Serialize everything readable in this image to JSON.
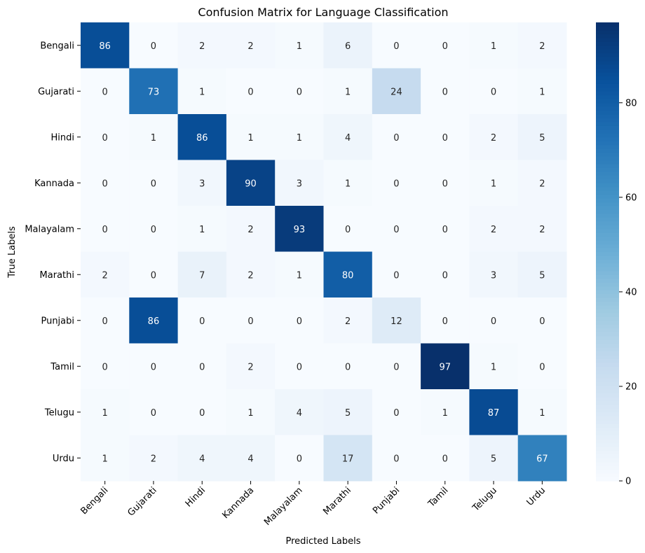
{
  "chart_data": {
    "type": "heatmap",
    "title": "Confusion Matrix for Language Classification",
    "xlabel": "Predicted Labels",
    "ylabel": "True Labels",
    "x_categories": [
      "Bengali",
      "Gujarati",
      "Hindi",
      "Kannada",
      "Malayalam",
      "Marathi",
      "Punjabi",
      "Tamil",
      "Telugu",
      "Urdu"
    ],
    "y_categories": [
      "Bengali",
      "Gujarati",
      "Hindi",
      "Kannada",
      "Malayalam",
      "Marathi",
      "Punjabi",
      "Tamil",
      "Telugu",
      "Urdu"
    ],
    "values": [
      [
        86,
        0,
        2,
        2,
        1,
        6,
        0,
        0,
        1,
        2
      ],
      [
        0,
        73,
        1,
        0,
        0,
        1,
        24,
        0,
        0,
        1
      ],
      [
        0,
        1,
        86,
        1,
        1,
        4,
        0,
        0,
        2,
        5
      ],
      [
        0,
        0,
        3,
        90,
        3,
        1,
        0,
        0,
        1,
        2
      ],
      [
        0,
        0,
        1,
        2,
        93,
        0,
        0,
        0,
        2,
        2
      ],
      [
        2,
        0,
        7,
        2,
        1,
        80,
        0,
        0,
        3,
        5
      ],
      [
        0,
        86,
        0,
        0,
        0,
        2,
        12,
        0,
        0,
        0
      ],
      [
        0,
        0,
        0,
        2,
        0,
        0,
        0,
        97,
        1,
        0
      ],
      [
        1,
        0,
        0,
        1,
        4,
        5,
        0,
        1,
        87,
        1
      ],
      [
        1,
        2,
        4,
        4,
        0,
        17,
        0,
        0,
        5,
        67
      ]
    ],
    "colormap": "Blues",
    "vmin": 0,
    "vmax": 97,
    "colorbar_ticks": [
      0,
      20,
      40,
      60,
      80
    ],
    "annotations": true
  }
}
